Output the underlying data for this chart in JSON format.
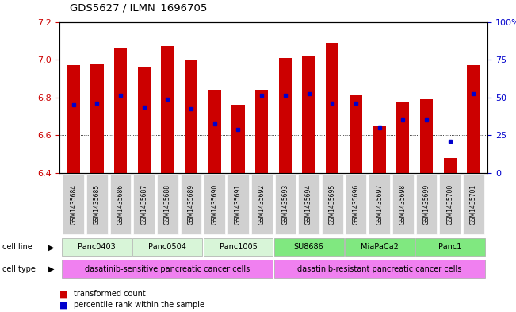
{
  "title": "GDS5627 / ILMN_1696705",
  "samples": [
    "GSM1435684",
    "GSM1435685",
    "GSM1435686",
    "GSM1435687",
    "GSM1435688",
    "GSM1435689",
    "GSM1435690",
    "GSM1435691",
    "GSM1435692",
    "GSM1435693",
    "GSM1435694",
    "GSM1435695",
    "GSM1435696",
    "GSM1435697",
    "GSM1435698",
    "GSM1435699",
    "GSM1435700",
    "GSM1435701"
  ],
  "bar_heights": [
    6.97,
    6.98,
    7.06,
    6.96,
    7.07,
    7.0,
    6.84,
    6.76,
    6.84,
    7.01,
    7.02,
    7.09,
    6.81,
    6.65,
    6.78,
    6.79,
    6.48,
    6.97
  ],
  "blue_dot_y": [
    6.76,
    6.77,
    6.81,
    6.75,
    6.79,
    6.74,
    6.66,
    6.63,
    6.81,
    6.81,
    6.82,
    6.77,
    6.77,
    6.64,
    6.68,
    6.68,
    6.57,
    6.82
  ],
  "cell_lines": [
    {
      "label": "Panc0403",
      "start": 0,
      "end": 2,
      "color": "#d8f5d8"
    },
    {
      "label": "Panc0504",
      "start": 3,
      "end": 5,
      "color": "#d8f5d8"
    },
    {
      "label": "Panc1005",
      "start": 6,
      "end": 8,
      "color": "#d8f5d8"
    },
    {
      "label": "SU8686",
      "start": 9,
      "end": 11,
      "color": "#80e880"
    },
    {
      "label": "MiaPaCa2",
      "start": 12,
      "end": 14,
      "color": "#80e880"
    },
    {
      "label": "Panc1",
      "start": 15,
      "end": 17,
      "color": "#80e880"
    }
  ],
  "cell_types": [
    {
      "label": "dasatinib-sensitive pancreatic cancer cells",
      "start": 0,
      "end": 8,
      "color": "#f080f0"
    },
    {
      "label": "dasatinib-resistant pancreatic cancer cells",
      "start": 9,
      "end": 17,
      "color": "#f080f0"
    }
  ],
  "ylim": [
    6.4,
    7.2
  ],
  "yticks": [
    6.4,
    6.6,
    6.8,
    7.0,
    7.2
  ],
  "right_yticks": [
    0,
    25,
    50,
    75,
    100
  ],
  "right_ytick_labels": [
    "0",
    "25",
    "50",
    "75",
    "100%"
  ],
  "bar_color": "#cc0000",
  "dot_color": "#0000cc",
  "left_tick_color": "#cc0000",
  "right_tick_color": "#0000cc",
  "grid_color": "#000000",
  "sample_label_bg": "#d0d0d0"
}
